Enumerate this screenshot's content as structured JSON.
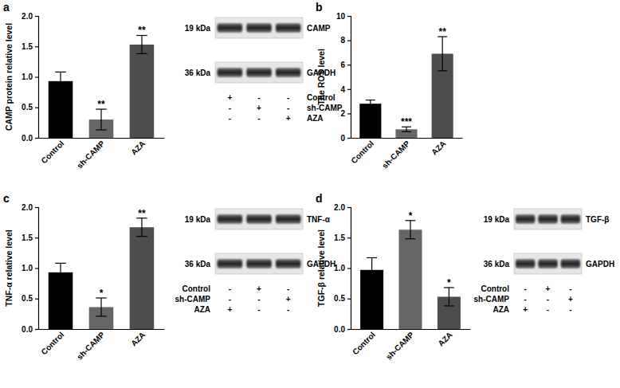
{
  "chart_data": [
    {
      "type": "bar",
      "panel": "a",
      "y_label": "CAMP protein relative level",
      "categories": [
        "Control",
        "sh-CAMP",
        "AZA"
      ],
      "values": [
        0.93,
        0.3,
        1.53
      ],
      "errors": [
        0.15,
        0.17,
        0.15
      ],
      "significance": [
        null,
        "**",
        "**"
      ],
      "colors": [
        "#000000",
        "#666666",
        "#4d4d4d"
      ],
      "ylim": [
        0,
        2
      ],
      "yticks": [
        {
          "value": 0,
          "label": "0.0"
        },
        {
          "value": 0.5,
          "label": "0.5"
        },
        {
          "value": 1,
          "label": "1.0"
        },
        {
          "value": 1.5,
          "label": "1.5"
        },
        {
          "value": 2,
          "label": "2.0"
        }
      ],
      "blot": {
        "rows": [
          {
            "kda": "19 kDa",
            "protein": "CAMP"
          },
          {
            "kda": "36 kDa",
            "protein": "GAPDH"
          }
        ],
        "conditions": [
          {
            "name": "Control",
            "signs": [
              "+",
              "-",
              "-"
            ]
          },
          {
            "name": "sh-CAMP",
            "signs": [
              "-",
              "+",
              "-"
            ]
          },
          {
            "name": "AZA",
            "signs": [
              "-",
              "-",
              "+"
            ]
          }
        ]
      }
    },
    {
      "type": "bar",
      "panel": "b",
      "y_label": "The ROS level",
      "categories": [
        "Control",
        "sh-CAMP",
        "AZA"
      ],
      "values": [
        2.8,
        0.7,
        6.9
      ],
      "errors": [
        0.3,
        0.2,
        1.4
      ],
      "significance": [
        null,
        "***",
        "**"
      ],
      "colors": [
        "#000000",
        "#666666",
        "#4d4d4d"
      ],
      "ylim": [
        0,
        10
      ],
      "yticks": [
        0,
        2,
        4,
        6,
        8,
        10
      ]
    },
    {
      "type": "bar",
      "panel": "c",
      "y_label": "TNF-α relative level",
      "categories": [
        "Control",
        "sh-CAMP",
        "AZA"
      ],
      "values": [
        0.93,
        0.36,
        1.67
      ],
      "errors": [
        0.15,
        0.15,
        0.15
      ],
      "significance": [
        null,
        "*",
        "**"
      ],
      "colors": [
        "#000000",
        "#666666",
        "#4d4d4d"
      ],
      "ylim": [
        0,
        2
      ],
      "yticks": [
        {
          "value": 0,
          "label": "0.0"
        },
        {
          "value": 0.5,
          "label": "0.5"
        },
        {
          "value": 1,
          "label": "1.0"
        },
        {
          "value": 1.5,
          "label": "1.5"
        },
        {
          "value": 2,
          "label": "2.0"
        }
      ],
      "blot": {
        "rows": [
          {
            "kda": "19 kDa",
            "protein": "TNF-α"
          },
          {
            "kda": "36 kDa",
            "protein": "GAPDH"
          }
        ],
        "conditions": [
          {
            "name": "Control",
            "signs": [
              "-",
              "+",
              "-"
            ]
          },
          {
            "name": "sh-CAMP",
            "signs": [
              "-",
              "-",
              "+"
            ]
          },
          {
            "name": "AZA",
            "signs": [
              "+",
              "-",
              "-"
            ]
          }
        ]
      }
    },
    {
      "type": "bar",
      "panel": "d",
      "y_label": "TGF-β relative level",
      "categories": [
        "Control",
        "sh-CAMP",
        "AZA"
      ],
      "values": [
        0.97,
        1.63,
        0.53
      ],
      "errors": [
        0.2,
        0.15,
        0.15
      ],
      "significance": [
        null,
        "*",
        "*"
      ],
      "colors": [
        "#000000",
        "#666666",
        "#4d4d4d"
      ],
      "ylim": [
        0,
        2
      ],
      "yticks": [
        {
          "value": 0,
          "label": "0.0"
        },
        {
          "value": 0.5,
          "label": "0.5"
        },
        {
          "value": 1,
          "label": "1.0"
        },
        {
          "value": 1.5,
          "label": "1.5"
        },
        {
          "value": 2,
          "label": "2.0"
        }
      ],
      "blot": {
        "rows": [
          {
            "kda": "19 kDa",
            "protein": "TGF-β"
          },
          {
            "kda": "36 kDa",
            "protein": "GAPDH"
          }
        ],
        "conditions": [
          {
            "name": "Control",
            "signs": [
              "-",
              "+",
              "-"
            ]
          },
          {
            "name": "sh-CAMP",
            "signs": [
              "-",
              "-",
              "+"
            ]
          },
          {
            "name": "AZA",
            "signs": [
              "+",
              "-",
              "-"
            ]
          }
        ]
      }
    }
  ]
}
